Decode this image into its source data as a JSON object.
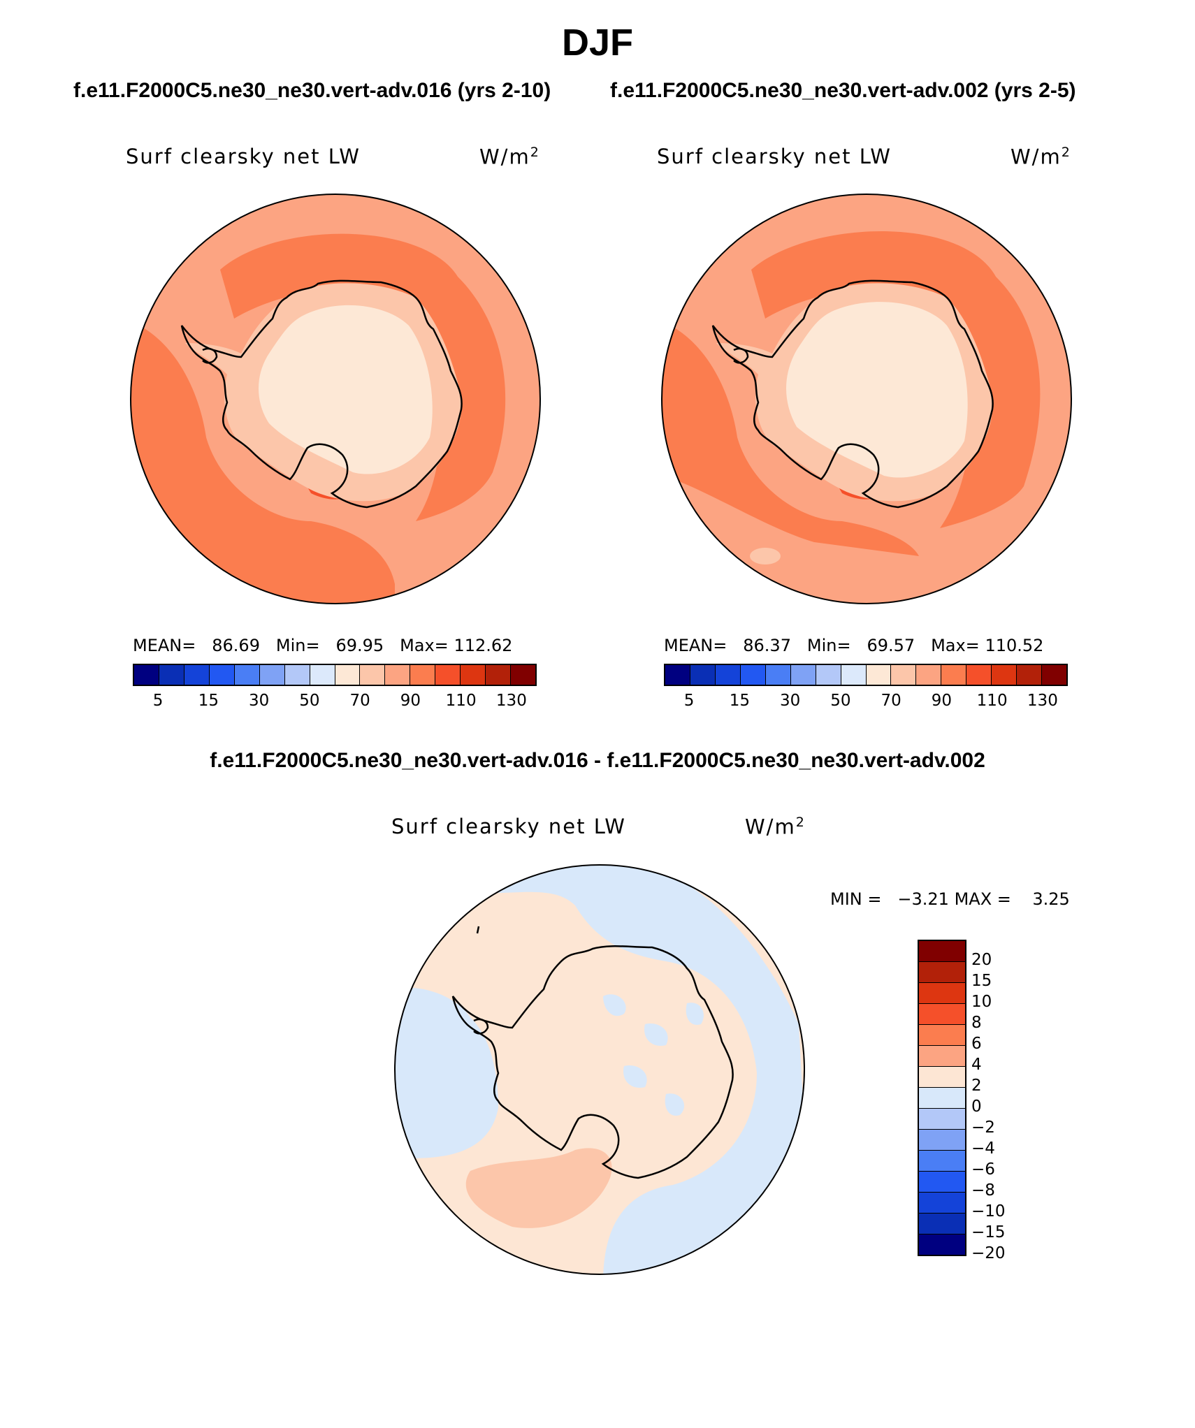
{
  "title": "DJF",
  "panels": [
    {
      "case_title": "f.e11.F2000C5.ne30_ne30.vert-adv.016 (yrs 2-10)",
      "variable": "Surf clearsky net LW",
      "units_base": "W/m",
      "units_exp": "2",
      "mean_label": "MEAN=",
      "mean": "86.69",
      "min_label": "Min=",
      "min": "69.95",
      "max_label": "Max=",
      "max": "112.62"
    },
    {
      "case_title": "f.e11.F2000C5.ne30_ne30.vert-adv.002 (yrs 2-5)",
      "variable": "Surf clearsky net LW",
      "units_base": "W/m",
      "units_exp": "2",
      "mean_label": "MEAN=",
      "mean": "86.37",
      "min_label": "Min=",
      "min": "69.57",
      "max_label": "Max=",
      "max": "110.52"
    }
  ],
  "diff_panel": {
    "case_title": "f.e11.F2000C5.ne30_ne30.vert-adv.016 - f.e11.F2000C5.ne30_ne30.vert-adv.002",
    "variable": "Surf clearsky net LW",
    "units_base": "W/m",
    "units_exp": "2",
    "min_label": "MIN =",
    "min": "−3.21",
    "max_label": "MAX =",
    "max": "3.25"
  },
  "colorbar_abs": {
    "colors": [
      "#000080",
      "#0a2fb5",
      "#1443d9",
      "#2258f2",
      "#4a7ef5",
      "#7fa2f5",
      "#b3c8f8",
      "#dce9fb",
      "#fde8d6",
      "#fcc6aa",
      "#fca482",
      "#fb7d4f",
      "#f5502a",
      "#dd3611",
      "#b22109",
      "#800000"
    ],
    "tick_labels": [
      "5",
      "15",
      "30",
      "50",
      "70",
      "90",
      "110",
      "130"
    ]
  },
  "colorbar_diff": {
    "colors": [
      "#800000",
      "#b22109",
      "#dd3611",
      "#f5502a",
      "#fb7d4f",
      "#fca482",
      "#fde6d4",
      "#d8e8fa",
      "#b3c8f8",
      "#7fa2f5",
      "#4a7ef5",
      "#2258f2",
      "#1443d9",
      "#0a2fb5",
      "#000080"
    ],
    "tick_labels": [
      "20",
      "15",
      "10",
      "8",
      "6",
      "4",
      "2",
      "0",
      "−2",
      "−4",
      "−6",
      "−8",
      "−10",
      "−15",
      "−20"
    ]
  },
  "map_colors": {
    "ocean_base": "#fca482",
    "ocean_high": "#fb7d4f",
    "ocean_peak": "#f5502a",
    "continent": "#fcc6aa",
    "interior": "#fde8d6",
    "diff_base": "#fde6d4",
    "diff_neg": "#d8e8fa",
    "diff_pos": "#fcc6aa",
    "coast": "#000000"
  }
}
